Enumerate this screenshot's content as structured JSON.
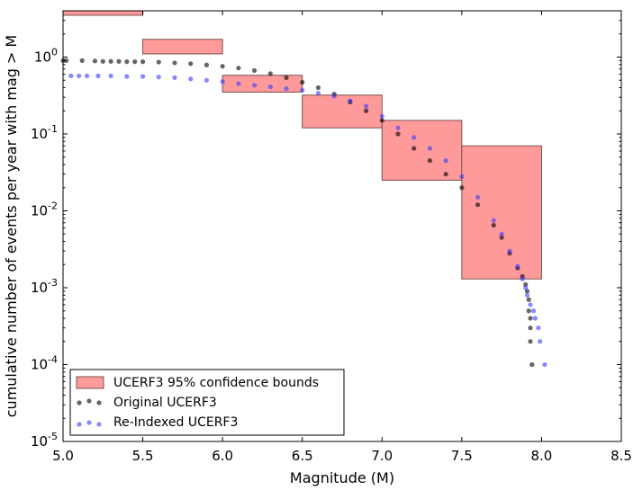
{
  "chart_data": {
    "type": "scatter",
    "xlabel": "Magnitude (M)",
    "ylabel": "cumulative number of events per year with mag > M",
    "xlim": [
      5.0,
      8.5
    ],
    "ylim": [
      1e-05,
      4.0
    ],
    "yscale": "log",
    "grid": false,
    "legend_position": "lower-left",
    "x_ticks": [
      "5.0",
      "5.5",
      "6.0",
      "6.5",
      "7.0",
      "7.5",
      "8.0",
      "8.5"
    ],
    "y_ticks": [
      {
        "value": 1,
        "base": "10",
        "exp": "0"
      },
      {
        "value": 0.1,
        "base": "10",
        "exp": "-1"
      },
      {
        "value": 0.01,
        "base": "10",
        "exp": "-2"
      },
      {
        "value": 0.001,
        "base": "10",
        "exp": "-3"
      },
      {
        "value": 0.0001,
        "base": "10",
        "exp": "-4"
      },
      {
        "value": 1e-05,
        "base": "10",
        "exp": "-5"
      }
    ],
    "confidence_boxes": {
      "name": "UCERF3 95% confidence bounds",
      "color": "#ff9a9a",
      "edge_color": "#7a5050",
      "boxes": [
        {
          "x0": 5.0,
          "x1": 5.5,
          "y_low": 3.5,
          "y_high": 4.0
        },
        {
          "x0": 5.5,
          "x1": 6.0,
          "y_low": 1.1,
          "y_high": 1.7
        },
        {
          "x0": 6.0,
          "x1": 6.5,
          "y_low": 0.35,
          "y_high": 0.58
        },
        {
          "x0": 6.5,
          "x1": 7.0,
          "y_low": 0.12,
          "y_high": 0.32
        },
        {
          "x0": 7.0,
          "x1": 7.5,
          "y_low": 0.025,
          "y_high": 0.15
        },
        {
          "x0": 7.5,
          "x1": 8.0,
          "y_low": 0.0013,
          "y_high": 0.07
        }
      ]
    },
    "series": [
      {
        "name": "Original UCERF3",
        "color": "#000000",
        "points": [
          [
            5.0,
            0.9
          ],
          [
            5.02,
            0.9
          ],
          [
            5.12,
            0.9
          ],
          [
            5.2,
            0.89
          ],
          [
            5.25,
            0.88
          ],
          [
            5.3,
            0.88
          ],
          [
            5.35,
            0.88
          ],
          [
            5.4,
            0.87
          ],
          [
            5.45,
            0.87
          ],
          [
            5.5,
            0.87
          ],
          [
            5.6,
            0.86
          ],
          [
            5.7,
            0.84
          ],
          [
            5.8,
            0.82
          ],
          [
            5.9,
            0.79
          ],
          [
            6.0,
            0.76
          ],
          [
            6.1,
            0.72
          ],
          [
            6.2,
            0.67
          ],
          [
            6.3,
            0.61
          ],
          [
            6.4,
            0.54
          ],
          [
            6.5,
            0.47
          ],
          [
            6.6,
            0.4
          ],
          [
            6.7,
            0.33
          ],
          [
            6.8,
            0.26
          ],
          [
            6.9,
            0.2
          ],
          [
            7.0,
            0.15
          ],
          [
            7.1,
            0.1
          ],
          [
            7.2,
            0.065
          ],
          [
            7.3,
            0.045
          ],
          [
            7.4,
            0.03
          ],
          [
            7.5,
            0.02
          ],
          [
            7.6,
            0.012
          ],
          [
            7.7,
            0.0065
          ],
          [
            7.75,
            0.0045
          ],
          [
            7.8,
            0.0028
          ],
          [
            7.85,
            0.0018
          ],
          [
            7.88,
            0.0014
          ],
          [
            7.9,
            0.0011
          ],
          [
            7.91,
            0.0009
          ],
          [
            7.92,
            0.0007
          ],
          [
            7.92,
            0.0005
          ],
          [
            7.93,
            0.0004
          ],
          [
            7.93,
            0.0003
          ],
          [
            7.93,
            0.0002
          ],
          [
            7.94,
            0.0001
          ]
        ]
      },
      {
        "name": "Re-Indexed UCERF3",
        "color": "#3a3aff",
        "points": [
          [
            5.05,
            0.57
          ],
          [
            5.1,
            0.57
          ],
          [
            5.15,
            0.57
          ],
          [
            5.22,
            0.57
          ],
          [
            5.3,
            0.57
          ],
          [
            5.4,
            0.56
          ],
          [
            5.5,
            0.56
          ],
          [
            5.6,
            0.55
          ],
          [
            5.7,
            0.54
          ],
          [
            5.8,
            0.52
          ],
          [
            5.9,
            0.5
          ],
          [
            6.0,
            0.48
          ],
          [
            6.1,
            0.45
          ],
          [
            6.2,
            0.43
          ],
          [
            6.3,
            0.41
          ],
          [
            6.4,
            0.39
          ],
          [
            6.5,
            0.37
          ],
          [
            6.6,
            0.34
          ],
          [
            6.7,
            0.31
          ],
          [
            6.8,
            0.27
          ],
          [
            6.9,
            0.23
          ],
          [
            7.0,
            0.17
          ],
          [
            7.1,
            0.12
          ],
          [
            7.2,
            0.09
          ],
          [
            7.3,
            0.065
          ],
          [
            7.4,
            0.045
          ],
          [
            7.5,
            0.028
          ],
          [
            7.6,
            0.015
          ],
          [
            7.7,
            0.0075
          ],
          [
            7.75,
            0.005
          ],
          [
            7.8,
            0.003
          ],
          [
            7.85,
            0.0019
          ],
          [
            7.88,
            0.0013
          ],
          [
            7.9,
            0.001
          ],
          [
            7.91,
            0.0008
          ],
          [
            7.93,
            0.0006
          ],
          [
            7.95,
            0.0005
          ],
          [
            7.96,
            0.0004
          ],
          [
            7.98,
            0.0003
          ],
          [
            7.99,
            0.0002
          ],
          [
            8.02,
            0.0001
          ]
        ]
      }
    ]
  }
}
